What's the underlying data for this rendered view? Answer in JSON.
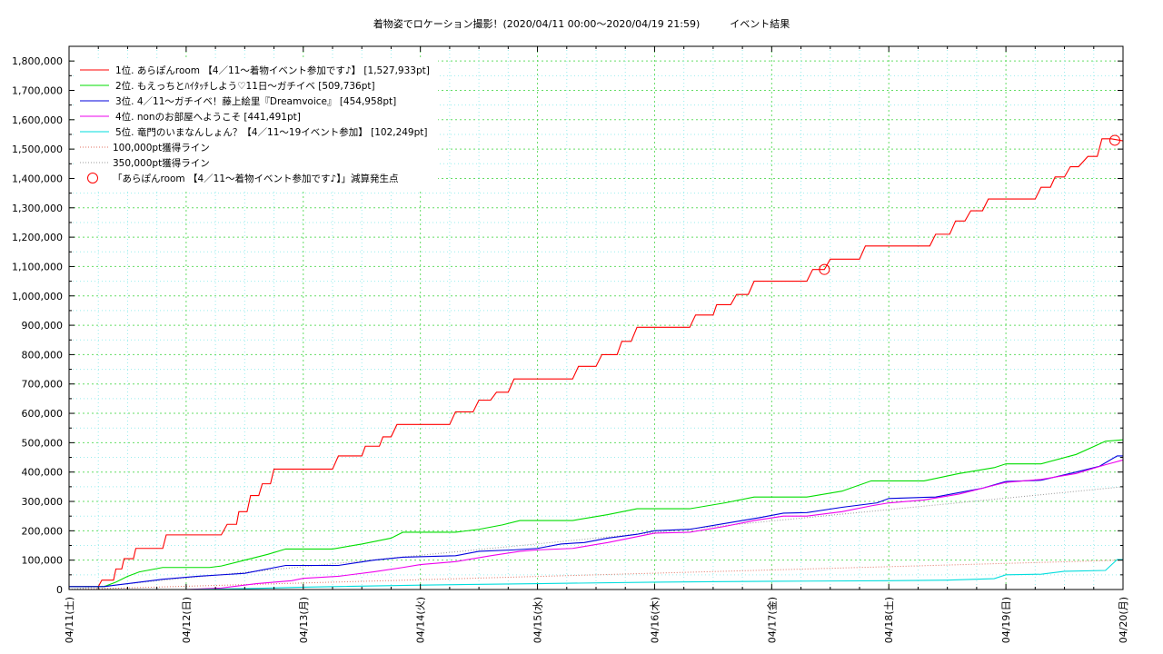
{
  "chart_data": {
    "type": "line",
    "title": "着物姿でロケーション撮影！(2020/04/11 00:00〜2020/04/19 21:59)　　　イベント結果",
    "xlabel": "",
    "ylabel": "",
    "x_ticks": [
      "04/11(土)",
      "04/12(日)",
      "04/13(月)",
      "04/14(火)",
      "04/15(水)",
      "04/16(木)",
      "04/17(金)",
      "04/18(土)",
      "04/19(日)",
      "04/20(月)"
    ],
    "x_range_days": [
      0,
      9
    ],
    "ylim": [
      0,
      1850000
    ],
    "y_ticks": [
      "0",
      "100,000",
      "200,000",
      "300,000",
      "400,000",
      "500,000",
      "600,000",
      "700,000",
      "800,000",
      "900,000",
      "1,000,000",
      "1,100,000",
      "1,200,000",
      "1,300,000",
      "1,400,000",
      "1,500,000",
      "1,600,000",
      "1,700,000",
      "1,800,000"
    ],
    "grid": true,
    "legend_position": "top-left",
    "series": [
      {
        "name": "1位. あらぽんroom 【4／11〜着物イベント参加です♪】 [1,527,933pt]",
        "color": "#ff0000",
        "points": [
          [
            0,
            10000
          ],
          [
            0.25,
            10000
          ],
          [
            0.28,
            32000
          ],
          [
            0.38,
            32000
          ],
          [
            0.4,
            70000
          ],
          [
            0.45,
            70000
          ],
          [
            0.47,
            105000
          ],
          [
            0.55,
            105000
          ],
          [
            0.57,
            140000
          ],
          [
            0.8,
            140000
          ],
          [
            0.83,
            186000
          ],
          [
            1.2,
            186000
          ],
          [
            1.3,
            186000
          ],
          [
            1.35,
            222000
          ],
          [
            1.43,
            222000
          ],
          [
            1.45,
            265000
          ],
          [
            1.52,
            265000
          ],
          [
            1.55,
            320000
          ],
          [
            1.62,
            320000
          ],
          [
            1.65,
            360000
          ],
          [
            1.72,
            360000
          ],
          [
            1.75,
            410000
          ],
          [
            2.25,
            410000
          ],
          [
            2.3,
            455000
          ],
          [
            2.5,
            455000
          ],
          [
            2.53,
            488000
          ],
          [
            2.65,
            488000
          ],
          [
            2.68,
            520000
          ],
          [
            2.75,
            520000
          ],
          [
            2.8,
            562000
          ],
          [
            3.25,
            562000
          ],
          [
            3.3,
            605000
          ],
          [
            3.45,
            605000
          ],
          [
            3.5,
            645000
          ],
          [
            3.6,
            645000
          ],
          [
            3.65,
            672000
          ],
          [
            3.75,
            672000
          ],
          [
            3.8,
            717000
          ],
          [
            4.3,
            717000
          ],
          [
            4.35,
            760000
          ],
          [
            4.5,
            760000
          ],
          [
            4.55,
            800000
          ],
          [
            4.68,
            800000
          ],
          [
            4.72,
            845000
          ],
          [
            4.8,
            845000
          ],
          [
            4.85,
            893000
          ],
          [
            5.3,
            893000
          ],
          [
            5.35,
            935000
          ],
          [
            5.5,
            935000
          ],
          [
            5.53,
            970000
          ],
          [
            5.65,
            970000
          ],
          [
            5.7,
            1005000
          ],
          [
            5.8,
            1005000
          ],
          [
            5.85,
            1050000
          ],
          [
            6.3,
            1050000
          ],
          [
            6.35,
            1090000
          ],
          [
            6.45,
            1090000
          ],
          [
            6.5,
            1125000
          ],
          [
            6.75,
            1125000
          ],
          [
            6.8,
            1170000
          ],
          [
            7.35,
            1170000
          ],
          [
            7.4,
            1210000
          ],
          [
            7.52,
            1210000
          ],
          [
            7.57,
            1255000
          ],
          [
            7.65,
            1255000
          ],
          [
            7.7,
            1290000
          ],
          [
            7.8,
            1290000
          ],
          [
            7.85,
            1330000
          ],
          [
            8.25,
            1330000
          ],
          [
            8.3,
            1370000
          ],
          [
            8.38,
            1370000
          ],
          [
            8.42,
            1405000
          ],
          [
            8.5,
            1405000
          ],
          [
            8.55,
            1440000
          ],
          [
            8.62,
            1440000
          ],
          [
            8.7,
            1475000
          ],
          [
            8.78,
            1475000
          ],
          [
            8.82,
            1535000
          ],
          [
            8.9,
            1535000
          ],
          [
            9,
            1528000
          ]
        ]
      },
      {
        "name": "2位. もえっちとﾊｲﾀｯﾁしよう♡11日〜ガチイベ [509,736pt]",
        "color": "#00dd00",
        "points": [
          [
            0,
            10000
          ],
          [
            0.3,
            10000
          ],
          [
            0.4,
            25000
          ],
          [
            0.5,
            45000
          ],
          [
            0.6,
            60000
          ],
          [
            0.8,
            75000
          ],
          [
            1.2,
            75000
          ],
          [
            1.3,
            80000
          ],
          [
            1.5,
            100000
          ],
          [
            1.7,
            120000
          ],
          [
            1.85,
            138000
          ],
          [
            2.25,
            138000
          ],
          [
            2.5,
            155000
          ],
          [
            2.75,
            175000
          ],
          [
            2.85,
            195000
          ],
          [
            3.3,
            195000
          ],
          [
            3.5,
            205000
          ],
          [
            3.7,
            220000
          ],
          [
            3.85,
            235000
          ],
          [
            4.3,
            235000
          ],
          [
            4.6,
            255000
          ],
          [
            4.85,
            275000
          ],
          [
            5.3,
            275000
          ],
          [
            5.6,
            295000
          ],
          [
            5.85,
            315000
          ],
          [
            6.3,
            315000
          ],
          [
            6.6,
            335000
          ],
          [
            6.85,
            370000
          ],
          [
            7.3,
            370000
          ],
          [
            7.6,
            395000
          ],
          [
            7.9,
            415000
          ],
          [
            8.0,
            428000
          ],
          [
            8.3,
            428000
          ],
          [
            8.6,
            460000
          ],
          [
            8.85,
            505000
          ],
          [
            9,
            510000
          ]
        ]
      },
      {
        "name": "3位. 4／11〜ガチイベ！藤上絵里『Dreamvoice』 [454,958pt]",
        "color": "#0000dd",
        "points": [
          [
            0,
            10000
          ],
          [
            0.3,
            10000
          ],
          [
            0.5,
            20000
          ],
          [
            0.8,
            35000
          ],
          [
            1.1,
            45000
          ],
          [
            1.5,
            55000
          ],
          [
            1.85,
            82000
          ],
          [
            2.3,
            82000
          ],
          [
            2.6,
            100000
          ],
          [
            2.85,
            110000
          ],
          [
            3.3,
            115000
          ],
          [
            3.5,
            130000
          ],
          [
            3.8,
            135000
          ],
          [
            4.0,
            140000
          ],
          [
            4.2,
            155000
          ],
          [
            4.4,
            160000
          ],
          [
            4.6,
            175000
          ],
          [
            4.85,
            188000
          ],
          [
            5.0,
            200000
          ],
          [
            5.3,
            205000
          ],
          [
            5.6,
            225000
          ],
          [
            5.9,
            245000
          ],
          [
            6.1,
            260000
          ],
          [
            6.3,
            262000
          ],
          [
            6.6,
            280000
          ],
          [
            6.9,
            295000
          ],
          [
            7.0,
            310000
          ],
          [
            7.4,
            315000
          ],
          [
            7.6,
            330000
          ],
          [
            7.8,
            345000
          ],
          [
            8.0,
            368000
          ],
          [
            8.3,
            372000
          ],
          [
            8.6,
            400000
          ],
          [
            8.8,
            420000
          ],
          [
            8.95,
            455000
          ],
          [
            9,
            455000
          ]
        ]
      },
      {
        "name": "4位. nonのお部屋へようこそ [441,491pt]",
        "color": "#ee00ee",
        "points": [
          [
            0,
            0
          ],
          [
            1.0,
            0
          ],
          [
            1.3,
            5000
          ],
          [
            1.6,
            20000
          ],
          [
            1.9,
            30000
          ],
          [
            2.0,
            38000
          ],
          [
            2.3,
            45000
          ],
          [
            2.6,
            60000
          ],
          [
            2.85,
            75000
          ],
          [
            3.0,
            85000
          ],
          [
            3.3,
            95000
          ],
          [
            3.6,
            115000
          ],
          [
            3.85,
            130000
          ],
          [
            4.0,
            135000
          ],
          [
            4.3,
            140000
          ],
          [
            4.6,
            160000
          ],
          [
            4.85,
            180000
          ],
          [
            5.0,
            192000
          ],
          [
            5.3,
            195000
          ],
          [
            5.6,
            215000
          ],
          [
            5.85,
            235000
          ],
          [
            6.1,
            250000
          ],
          [
            6.3,
            250000
          ],
          [
            6.6,
            265000
          ],
          [
            6.85,
            285000
          ],
          [
            7.0,
            295000
          ],
          [
            7.3,
            305000
          ],
          [
            7.6,
            325000
          ],
          [
            7.85,
            350000
          ],
          [
            8.0,
            365000
          ],
          [
            8.3,
            375000
          ],
          [
            8.6,
            395000
          ],
          [
            8.85,
            425000
          ],
          [
            9,
            441000
          ]
        ]
      },
      {
        "name": "5位. 竜門のいまなんしょん？【4／11〜19イベント参加】 [102,249pt]",
        "color": "#00dddd",
        "points": [
          [
            0,
            0
          ],
          [
            1.0,
            0
          ],
          [
            1.5,
            3000
          ],
          [
            2.0,
            8000
          ],
          [
            3.0,
            15000
          ],
          [
            4.0,
            20000
          ],
          [
            5.0,
            25000
          ],
          [
            6.0,
            28000
          ],
          [
            7.0,
            30000
          ],
          [
            7.5,
            32000
          ],
          [
            7.9,
            37000
          ],
          [
            8.0,
            50000
          ],
          [
            8.3,
            52000
          ],
          [
            8.5,
            62000
          ],
          [
            8.85,
            65000
          ],
          [
            8.95,
            102000
          ],
          [
            9,
            102000
          ]
        ]
      }
    ],
    "reference_lines": [
      {
        "name": "100,000pt獲得ライン",
        "color": "#e07060",
        "points": [
          [
            0,
            0
          ],
          [
            9,
            100000
          ]
        ]
      },
      {
        "name": "350,000pt獲得ライン",
        "color": "#999999",
        "points": [
          [
            0,
            0
          ],
          [
            9,
            350000
          ]
        ]
      }
    ],
    "markers_legend": "「あらぽんroom 【4／11〜着物イベント参加です♪】」減算発生点",
    "markers": [
      [
        6.45,
        1090000
      ],
      [
        8.93,
        1530000
      ]
    ],
    "marker_color": "#ff0000"
  }
}
